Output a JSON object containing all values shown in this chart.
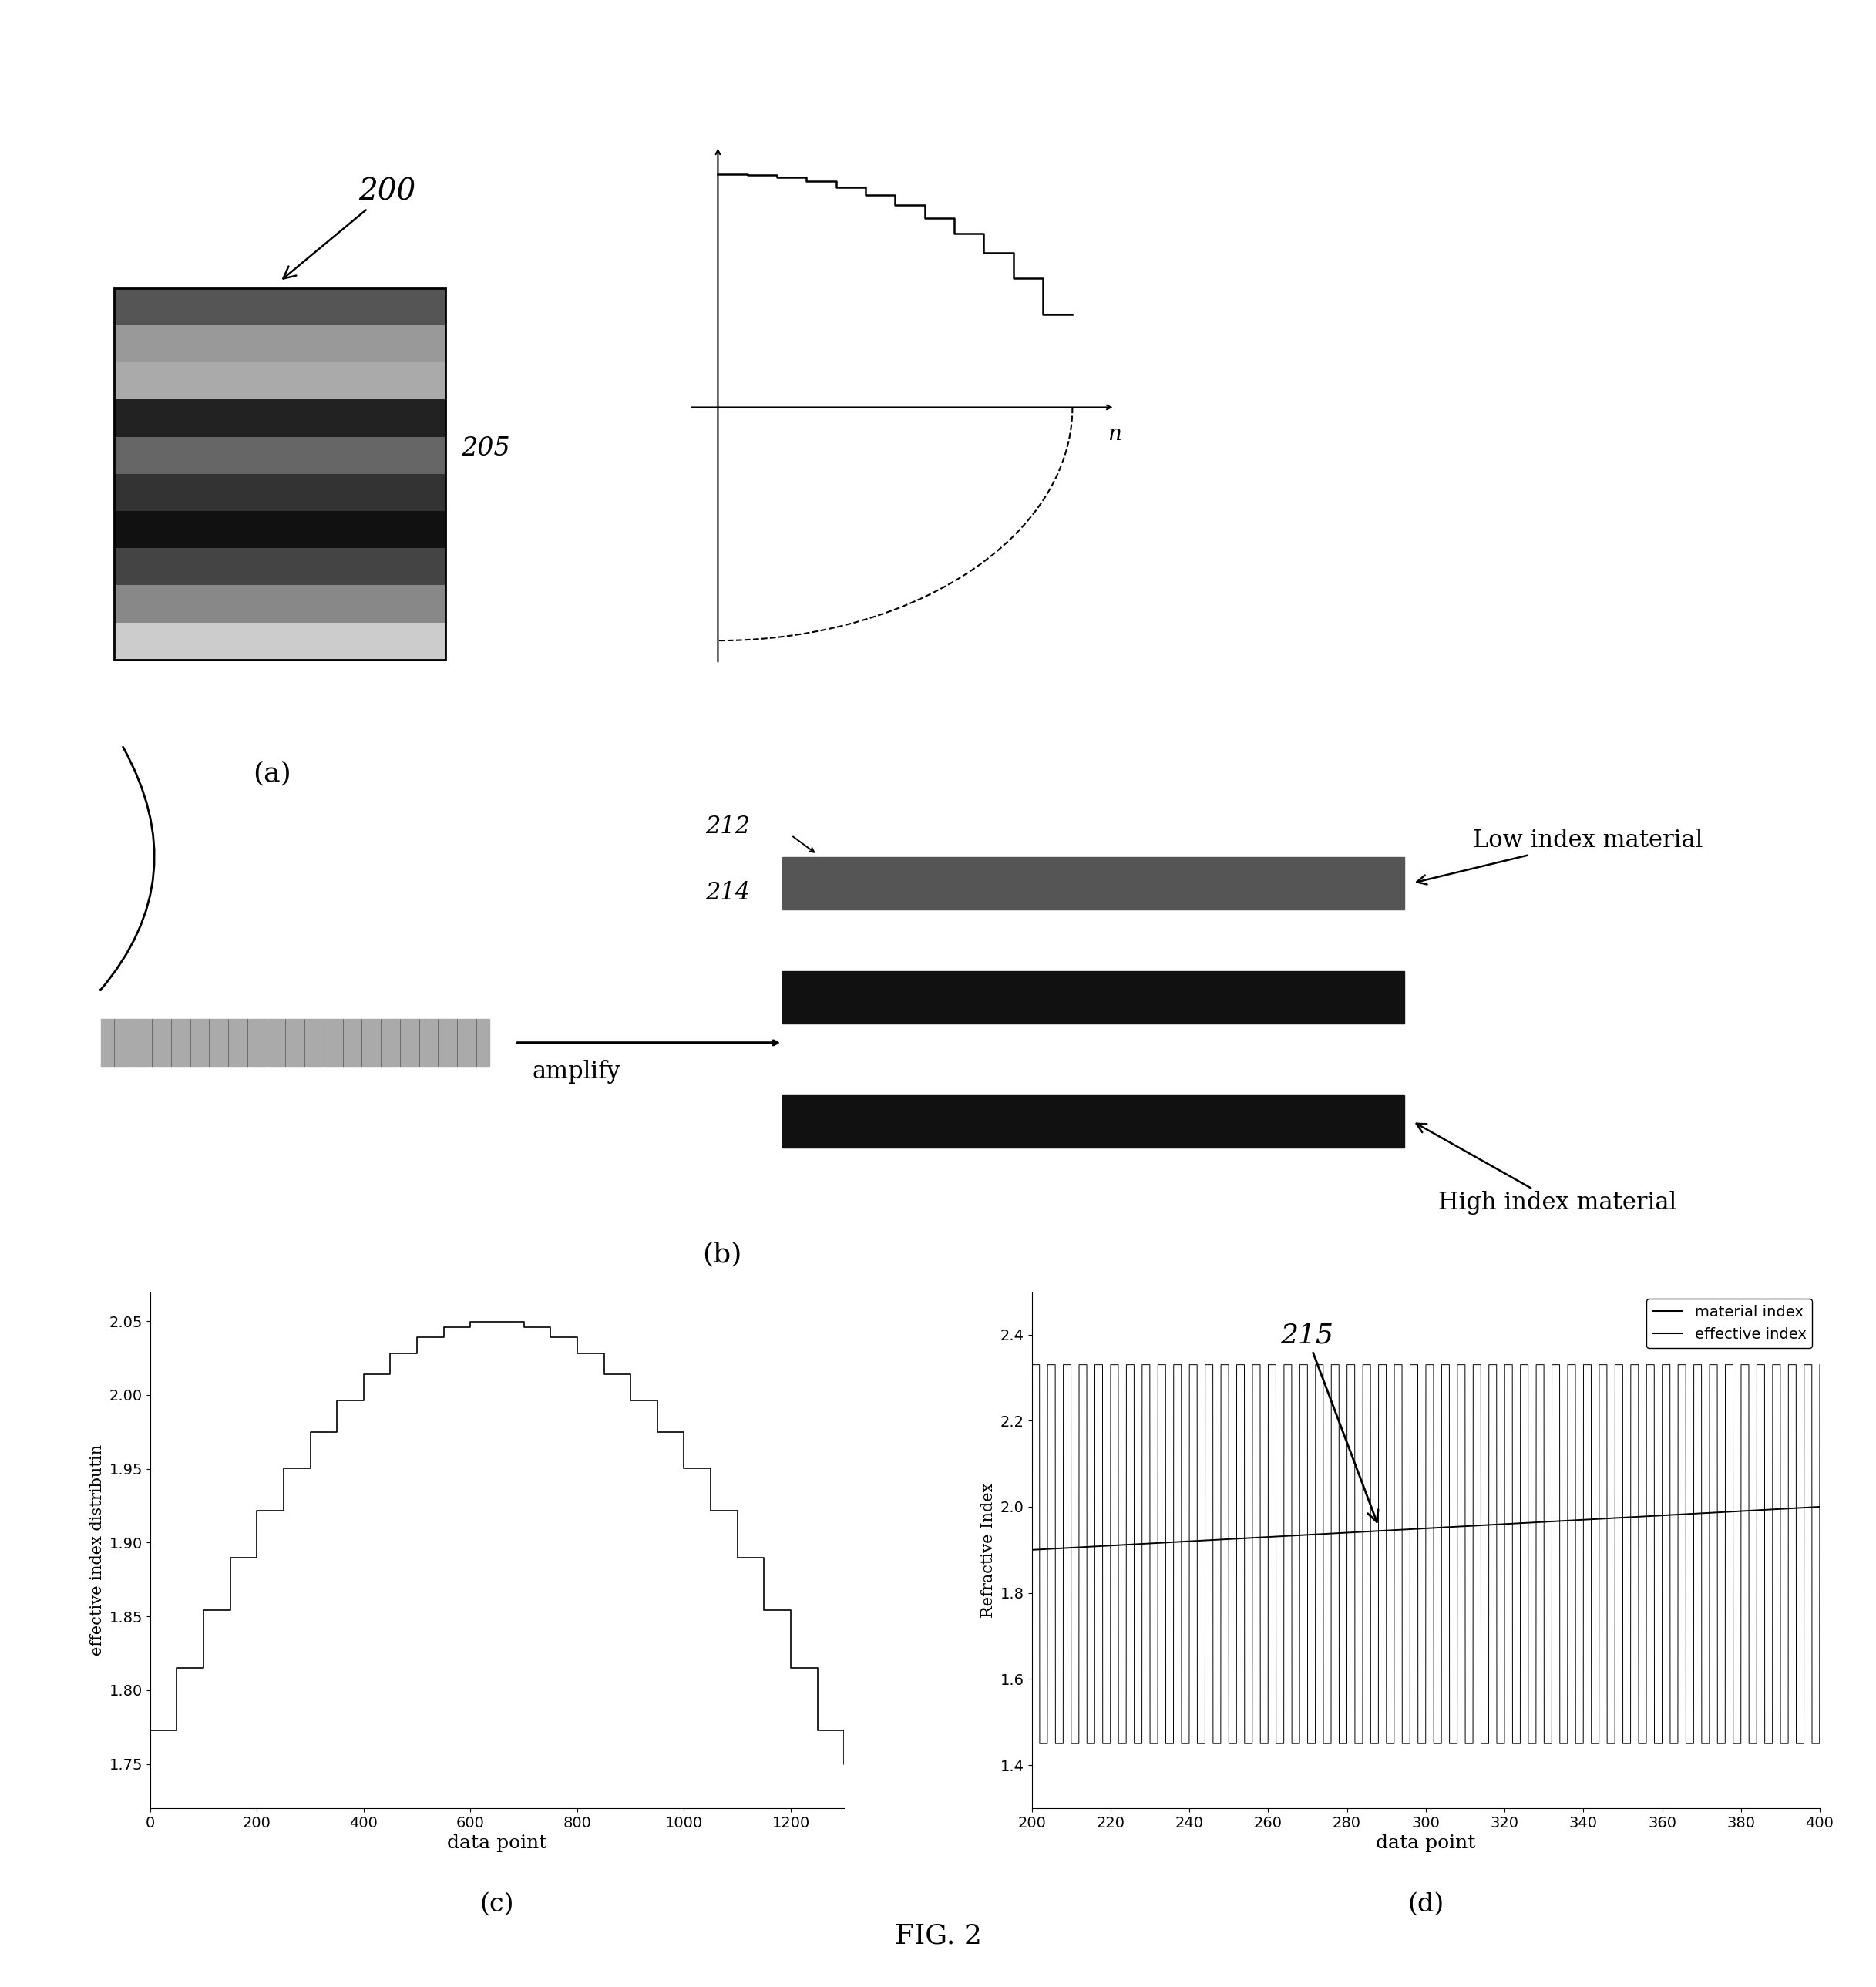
{
  "fig_width": 24.34,
  "fig_height": 25.78,
  "background_color": "#ffffff",
  "label_200": "200",
  "label_205": "205",
  "label_212": "212",
  "label_214": "214",
  "label_215": "215",
  "label_a": "(a)",
  "label_b": "(b)",
  "label_c": "(c)",
  "label_d": "(d)",
  "label_fig": "FIG. 2",
  "label_amplify": "amplify",
  "label_n_axis": "n",
  "label_low_index": "Low index material",
  "label_high_index": "High index material",
  "plot_c_xlabel": "data point",
  "plot_c_ylabel": "effective index distributin",
  "plot_c_xlim": [
    0,
    1300
  ],
  "plot_c_ylim": [
    1.72,
    2.07
  ],
  "plot_c_xticks": [
    0,
    200,
    400,
    600,
    800,
    1000,
    1200
  ],
  "plot_c_yticks": [
    1.75,
    1.8,
    1.85,
    1.9,
    1.95,
    2.0,
    2.05
  ],
  "plot_d_xlabel": "data point",
  "plot_d_ylabel": "Refractive Index",
  "plot_d_xlim": [
    200,
    400
  ],
  "plot_d_ylim": [
    1.3,
    2.5
  ],
  "plot_d_xticks": [
    200,
    220,
    240,
    260,
    280,
    300,
    320,
    340,
    360,
    380,
    400
  ],
  "plot_d_yticks": [
    1.4,
    1.6,
    1.8,
    2.0,
    2.2,
    2.4
  ],
  "material_index_high": 2.33,
  "material_index_low": 1.45,
  "legend_material": "material index",
  "legend_effective": "effective index",
  "block_layer_colors": [
    "#cccccc",
    "#888888",
    "#444444",
    "#111111",
    "#333333",
    "#666666",
    "#222222",
    "#aaaaaa",
    "#999999",
    "#555555"
  ],
  "bar_low_color": "#555555",
  "bar_high_color": "#111111"
}
